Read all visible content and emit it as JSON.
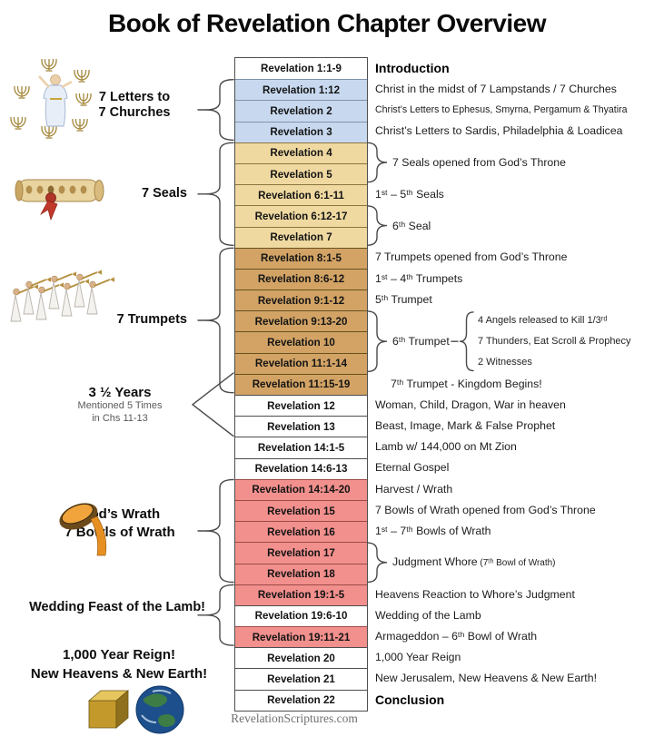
{
  "title": "Book of Revelation Chapter Overview",
  "watermark": "RevelationScriptures.com",
  "palette": {
    "sections": {
      "white": {
        "bg": "#ffffff",
        "border": "#4d4d4d"
      },
      "blue": {
        "bg": "#c8d9ef",
        "border": "#7f94ad"
      },
      "tan": {
        "bg": "#efd9a1",
        "border": "#8a7440"
      },
      "brown": {
        "bg": "#d2a365",
        "border": "#66511f"
      },
      "pink": {
        "bg": "#f2908d",
        "border": "#9c4a46"
      }
    },
    "brace_stroke": "#4a4a4a"
  },
  "rows": [
    {
      "chapter": "Revelation 1:1-9",
      "section": "white",
      "note": "Introduction",
      "note_style": "bold"
    },
    {
      "chapter": "Revelation 1:12",
      "section": "blue",
      "note": "Christ in the midst of 7 Lampstands / 7 Churches"
    },
    {
      "chapter": "Revelation 2",
      "section": "blue",
      "note": "Christ’s Letters to Ephesus, Smyrna, Pergamum & Thyatira",
      "note_style": "small"
    },
    {
      "chapter": "Revelation 3",
      "section": "blue",
      "note": "Christ’s Letters to Sardis, Philadelphia & Loadicea"
    },
    {
      "chapter": "Revelation 4",
      "section": "tan"
    },
    {
      "chapter": "Revelation 5",
      "section": "tan"
    },
    {
      "chapter": "Revelation 6:1-11",
      "section": "tan",
      "note": "1ˢᵗ – 5ᵗʰ Seals"
    },
    {
      "chapter": "Revelation 6:12-17",
      "section": "tan"
    },
    {
      "chapter": "Revelation 7",
      "section": "tan"
    },
    {
      "chapter": "Revelation 8:1-5",
      "section": "brown",
      "note": "7 Trumpets opened from God’s Throne"
    },
    {
      "chapter": "Revelation 8:6-12",
      "section": "brown",
      "note": "1ˢᵗ – 4ᵗʰ Trumpets"
    },
    {
      "chapter": "Revelation 9:1-12",
      "section": "brown",
      "note": "5ᵗʰ Trumpet"
    },
    {
      "chapter": "Revelation 9:13-20",
      "section": "brown"
    },
    {
      "chapter": "Revelation 10",
      "section": "brown"
    },
    {
      "chapter": "Revelation 11:1-14",
      "section": "brown"
    },
    {
      "chapter": "Revelation 11:15-19",
      "section": "brown",
      "note": "7ᵗʰ Trumpet - Kingdom Begins!",
      "indent": true
    },
    {
      "chapter": "Revelation 12",
      "section": "white",
      "note": "Woman, Child, Dragon, War in heaven"
    },
    {
      "chapter": "Revelation 13",
      "section": "white",
      "note": "Beast, Image, Mark & False Prophet"
    },
    {
      "chapter": "Revelation 14:1-5",
      "section": "white",
      "note": "Lamb w/ 144,000 on Mt Zion"
    },
    {
      "chapter": "Revelation 14:6-13",
      "section": "white",
      "note": "Eternal Gospel"
    },
    {
      "chapter": "Revelation 14:14-20",
      "section": "pink",
      "note": "Harvest / Wrath"
    },
    {
      "chapter": "Revelation 15",
      "section": "pink",
      "note": "7 Bowls of Wrath opened from God’s Throne"
    },
    {
      "chapter": "Revelation 16",
      "section": "pink",
      "note": "1ˢᵗ – 7ᵗʰ Bowls of Wrath"
    },
    {
      "chapter": "Revelation 17",
      "section": "pink"
    },
    {
      "chapter": "Revelation 18",
      "section": "pink"
    },
    {
      "chapter": "Revelation 19:1-5",
      "section": "pink",
      "note": "Heavens Reaction to Whore’s Judgment"
    },
    {
      "chapter": "Revelation 19:6-10",
      "section": "white",
      "note": "Wedding of the Lamb"
    },
    {
      "chapter": "Revelation 19:11-21",
      "section": "pink",
      "note": "Armageddon – 6ᵗʰ Bowl of Wrath"
    },
    {
      "chapter": "Revelation 20",
      "section": "white",
      "note": "1,000 Year Reign"
    },
    {
      "chapter": "Revelation 21",
      "section": "white",
      "note": "New Jerusalem, New Heavens & New Earth!"
    },
    {
      "chapter": "Revelation 22",
      "section": "white",
      "note": "Conclusion",
      "note_style": "bold"
    }
  ],
  "right_braces": [
    {
      "from": 4,
      "to": 5,
      "text": "7 Seals opened from God’s Throne"
    },
    {
      "from": 7,
      "to": 8,
      "text": "6ᵗʰ Seal"
    },
    {
      "from": 12,
      "to": 14,
      "text": "6ᵗʰ Trumpet",
      "detail": [
        "4 Angels released to Kill 1/3ʳᵈ",
        "7 Thunders, Eat Scroll & Prophecy",
        "2 Witnesses"
      ]
    },
    {
      "from": 23,
      "to": 24,
      "text": "Judgment Whore",
      "text_small": "(7ᵗʰ Bowl of Wrath)"
    }
  ],
  "left_labels": [
    {
      "lines": [
        "7 Letters to",
        "7 Churches"
      ],
      "brace": {
        "from": 1,
        "to": 3
      }
    },
    {
      "lines": [
        "7 Seals"
      ],
      "brace": {
        "from": 4,
        "to": 8
      }
    },
    {
      "lines": [
        "7 Trumpets"
      ],
      "brace": {
        "from": 9,
        "to": 15
      }
    },
    {
      "lines": [
        "3 ½ Years"
      ],
      "sub": [
        "Mentioned 5 Times",
        "in Chs 11-13"
      ],
      "pointer_rows": [
        15,
        17
      ]
    },
    {
      "lines": [
        "God’s Wrath",
        "7 Bowls of Wrath"
      ],
      "brace": {
        "from": 20,
        "to": 24
      }
    },
    {
      "lines": [
        "Wedding Feast of the Lamb!"
      ],
      "brace": {
        "from": 25,
        "to": 27
      }
    },
    {
      "lines": [
        "1,000 Year Reign!",
        "New Heavens & New Earth!"
      ]
    }
  ],
  "images": {
    "lampstands": "Christ among 7 golden lampstands",
    "scroll": "Scroll sealed with 7 seals",
    "trumpeters": "7 angels with trumpets",
    "bowl": "Bowl of wrath being poured out",
    "cube": "New Jerusalem golden cube",
    "earth": "New Earth globe"
  }
}
